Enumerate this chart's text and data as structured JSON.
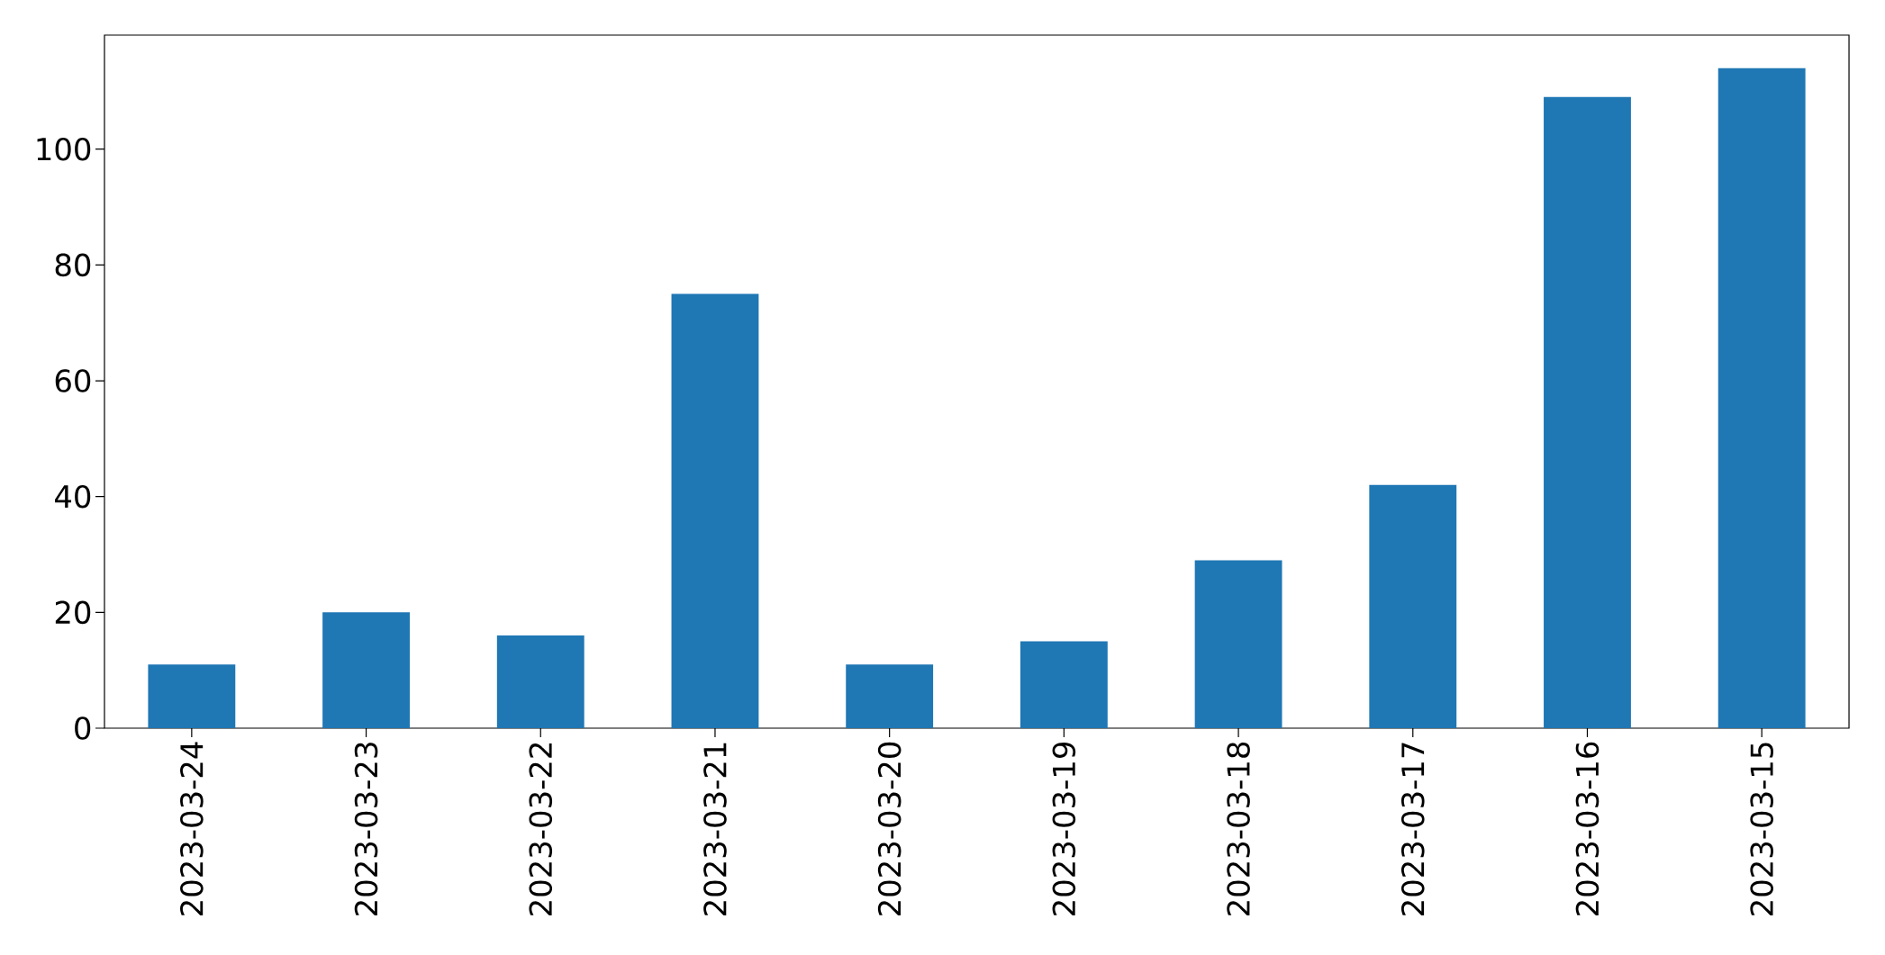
{
  "chart_data": {
    "type": "bar",
    "categories": [
      "2023-03-24",
      "2023-03-23",
      "2023-03-22",
      "2023-03-21",
      "2023-03-20",
      "2023-03-19",
      "2023-03-18",
      "2023-03-17",
      "2023-03-16",
      "2023-03-15"
    ],
    "values": [
      11,
      20,
      16,
      75,
      11,
      15,
      29,
      42,
      109,
      114
    ],
    "color": "#1f77b4",
    "ylim": [
      0,
      119.7
    ],
    "yticks": [
      0,
      20,
      40,
      60,
      80,
      100
    ]
  }
}
